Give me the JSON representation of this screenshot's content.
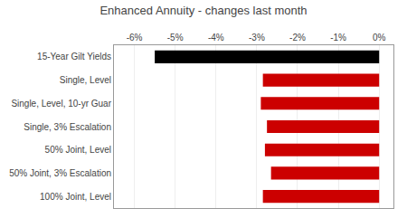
{
  "chart_data": {
    "type": "bar",
    "orientation": "horizontal",
    "title": "Enhanced Annuity - changes last month",
    "categories": [
      "15-Year Gilt Yields",
      "Single, Level",
      "Single, Level, 10-yr Guar",
      "Single, 3% Escalation",
      "50% Joint, Level",
      "50% Joint, 3% Escalation",
      "100% Joint, Level"
    ],
    "values": [
      -5.5,
      -2.85,
      -2.9,
      -2.75,
      -2.8,
      -2.65,
      -2.85
    ],
    "colors": [
      "#000000",
      "#cc0000",
      "#cc0000",
      "#cc0000",
      "#cc0000",
      "#cc0000",
      "#cc0000"
    ],
    "xlim": [
      -6.5,
      0.35
    ],
    "xticks": [
      {
        "value": -6,
        "label": "-6%"
      },
      {
        "value": -5,
        "label": "-5%"
      },
      {
        "value": -4,
        "label": "-4%"
      },
      {
        "value": -3,
        "label": "-3%"
      },
      {
        "value": -2,
        "label": "-2%"
      },
      {
        "value": -1,
        "label": "-1%"
      },
      {
        "value": 0,
        "label": "0%"
      }
    ],
    "grid": true
  }
}
